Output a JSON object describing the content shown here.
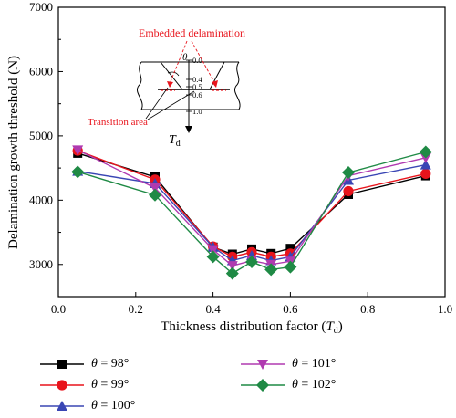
{
  "chart_data": {
    "type": "line",
    "xlabel": "Thickness distribution factor (",
    "xlabel_var": "T",
    "xlabel_sub": "d",
    "xlabel_close": ")",
    "ylabel": "Delamination growth threshold (N)",
    "xlim": [
      0.0,
      1.0
    ],
    "ylim": [
      2500,
      7000
    ],
    "x_ticks": [
      "0.0",
      "0.2",
      "0.4",
      "0.6",
      "0.8",
      "1.0"
    ],
    "y_ticks": [
      "3000",
      "4000",
      "5000",
      "6000",
      "7000"
    ],
    "x": [
      0.05,
      0.25,
      0.4,
      0.45,
      0.5,
      0.55,
      0.6,
      0.75,
      0.95
    ],
    "series": [
      {
        "name": "98°",
        "symbol": "theta",
        "color": "#000000",
        "marker": "square",
        "values": [
          4730,
          4360,
          3270,
          3160,
          3240,
          3170,
          3250,
          4090,
          4380
        ]
      },
      {
        "name": "99°",
        "symbol": "theta",
        "color": "#e8141c",
        "marker": "circle",
        "values": [
          4770,
          4320,
          3280,
          3120,
          3190,
          3120,
          3170,
          4140,
          4410
        ]
      },
      {
        "name": "100°",
        "symbol": "theta",
        "color": "#3a46b4",
        "marker": "triangle-up",
        "values": [
          4450,
          4260,
          3270,
          3060,
          3140,
          3060,
          3120,
          4310,
          4550
        ]
      },
      {
        "name": "101°",
        "symbol": "theta",
        "color": "#b03ab0",
        "marker": "triangle-down",
        "values": [
          4780,
          4190,
          3230,
          2980,
          3060,
          3000,
          3050,
          4380,
          4660
        ]
      },
      {
        "name": "102°",
        "symbol": "theta",
        "color": "#1f8a45",
        "marker": "diamond",
        "values": [
          4440,
          4080,
          3120,
          2860,
          3040,
          2920,
          2960,
          4430,
          4750
        ]
      }
    ],
    "legend_position": "bottom",
    "inset": {
      "embedded_label": "Embedded delamination",
      "transition_label": "Transition area",
      "theta": "θ",
      "scale": [
        "0.0",
        "0.4",
        "0.5",
        "0.6",
        "1.0"
      ],
      "axis_var": "T",
      "axis_sub": "d",
      "label_color": "#e8141c"
    }
  }
}
